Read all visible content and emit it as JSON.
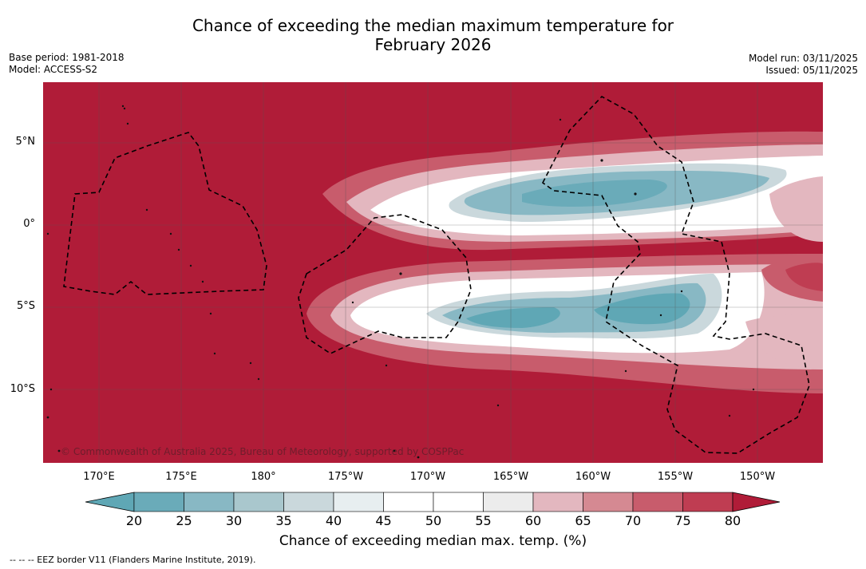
{
  "header": {
    "title_line1": "Chance of exceeding the median maximum temperature for",
    "title_line2": "February 2026",
    "base_period": "Base period: 1981-2018",
    "model": "Model: ACCESS-S2",
    "model_run": "Model run: 03/11/2025",
    "issued": "Issued: 05/11/2025"
  },
  "map": {
    "lat_labels": [
      "5°N",
      "0°",
      "5°S",
      "10°S"
    ],
    "lon_labels": [
      "170°E",
      "175°E",
      "180°",
      "175°W",
      "170°W",
      "165°W",
      "160°W",
      "155°W",
      "150°W"
    ],
    "copyright": "© Commonwealth of Australia 2025, Bureau of Meteorology, supported by COSPPac"
  },
  "colorbar": {
    "ticks": [
      "20",
      "25",
      "30",
      "35",
      "40",
      "45",
      "50",
      "55",
      "60",
      "65",
      "70",
      "75",
      "80"
    ],
    "colors": [
      "#5fa7b5",
      "#6aabb9",
      "#88b8c4",
      "#a9c7cd",
      "#cad8dc",
      "#e7eef0",
      "#ffffff",
      "#ffffff",
      "#ececec",
      "#e3b7bf",
      "#d58992",
      "#c85c6c",
      "#bf3d52",
      "#b01c38"
    ],
    "title": "Chance of exceeding median max. temp. (%)"
  },
  "legend": {
    "text": "--  --  -- EEZ border V11 (Flanders Marine Institute, 2019)."
  }
}
